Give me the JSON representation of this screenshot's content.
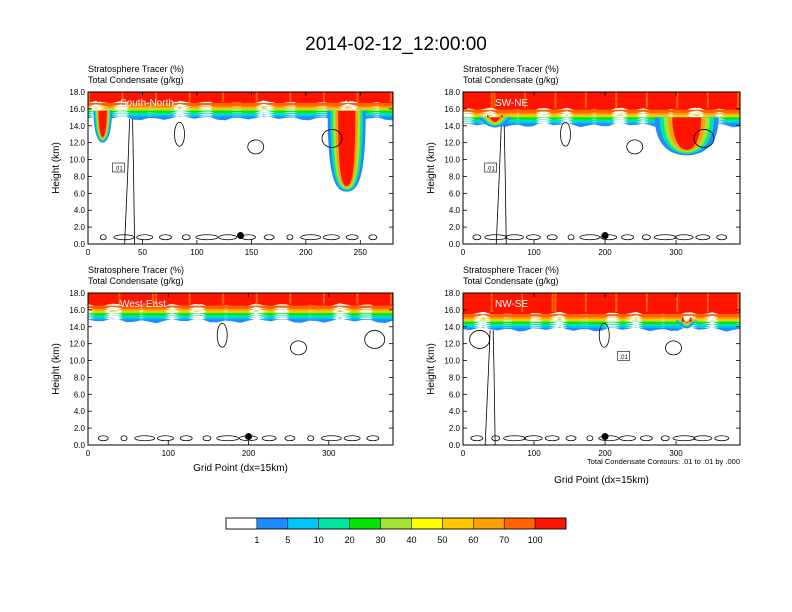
{
  "page": {
    "title": "2014-02-12_12:00:00"
  },
  "colors": {
    "levels": [
      "#ffffff",
      "#1e8cff",
      "#00c8ff",
      "#00e6a0",
      "#00e600",
      "#a0e632",
      "#ffff00",
      "#ffc800",
      "#ffa000",
      "#ff6400",
      "#ff1400"
    ],
    "contour": "#000000"
  },
  "colorbar": {
    "labels": [
      "1",
      "5",
      "10",
      "20",
      "30",
      "40",
      "50",
      "60",
      "70",
      "100"
    ],
    "thresholds": [
      1,
      5,
      10,
      20,
      30,
      40,
      50,
      60,
      70,
      100
    ]
  },
  "chart_data": [
    {
      "type": "heatmap",
      "id": "south-north",
      "subtitle_line1": "Stratosphere Tracer   (%)",
      "subtitle_line2": "Total Condensate   (g/kg)",
      "section_label": "South-North",
      "ylabel": "Height (km)",
      "xlabel": "",
      "xlim": [
        0,
        280
      ],
      "ylim": [
        0,
        18
      ],
      "xticks": [
        0,
        50,
        100,
        150,
        200,
        250
      ],
      "yticks": [
        "0.0",
        "2.0",
        "4.0",
        "6.0",
        "8.0",
        "10.0",
        "12.0",
        "14.0",
        "16.0",
        "18.0"
      ],
      "marker_x": 140,
      "marker_y": 1.0,
      "contour_label": ".01",
      "tracer_base_km": 15.8,
      "intrusions": [
        {
          "x_from": 220,
          "x_to": 255,
          "bottom_km": 6.2
        },
        {
          "x_from": 5,
          "x_to": 22,
          "bottom_km": 12.0
        }
      ]
    },
    {
      "type": "heatmap",
      "id": "sw-ne",
      "subtitle_line1": "Stratosphere Tracer   (%)",
      "subtitle_line2": "Total Condensate   (g/kg)",
      "section_label": "SW-NE",
      "ylabel": "Height (km)",
      "xlabel": "",
      "xlim": [
        0,
        390
      ],
      "ylim": [
        0,
        18
      ],
      "xticks": [
        0,
        100,
        200,
        300
      ],
      "yticks": [
        "0.0",
        "2.0",
        "4.0",
        "6.0",
        "8.0",
        "10.0",
        "12.0",
        "14.0",
        "16.0",
        "18.0"
      ],
      "marker_x": 200,
      "marker_y": 1.0,
      "contour_label": ".01",
      "tracer_base_km": 15.0,
      "intrusions": [
        {
          "x_from": 270,
          "x_to": 360,
          "bottom_km": 10.5
        },
        {
          "x_from": 20,
          "x_to": 70,
          "bottom_km": 13.8
        }
      ]
    },
    {
      "type": "heatmap",
      "id": "west-east",
      "subtitle_line1": "Stratosphere Tracer   (%)",
      "subtitle_line2": "Total Condensate   (g/kg)",
      "section_label": "West-East",
      "ylabel": "Height (km)",
      "xlabel": "Grid Point (dx=15km)",
      "xlim": [
        0,
        380
      ],
      "ylim": [
        0,
        18
      ],
      "xticks": [
        0,
        100,
        200,
        300
      ],
      "yticks": [
        "0.0",
        "2.0",
        "4.0",
        "6.0",
        "8.0",
        "10.0",
        "12.0",
        "14.0",
        "16.0",
        "18.0"
      ],
      "marker_x": 200,
      "marker_y": 1.0,
      "contour_label": "",
      "tracer_base_km": 15.6,
      "intrusions": []
    },
    {
      "type": "heatmap",
      "id": "nw-se",
      "subtitle_line1": "Stratosphere Tracer   (%)",
      "subtitle_line2": "Total Condensate   (g/kg)",
      "section_label": "NW-SE",
      "ylabel": "Height (km)",
      "xlabel": "Grid Point (dx=15km)",
      "xlim": [
        0,
        390
      ],
      "ylim": [
        0,
        18
      ],
      "xticks": [
        0,
        100,
        200,
        300
      ],
      "yticks": [
        "0.0",
        "2.0",
        "4.0",
        "6.0",
        "8.0",
        "10.0",
        "12.0",
        "14.0",
        "16.0",
        "18.0"
      ],
      "marker_x": 200,
      "marker_y": 1.0,
      "contour_label": ".01",
      "contour_note": "Total Condensate Contours: .01 to .01 by .000",
      "tracer_base_km": 14.6,
      "intrusions": [
        {
          "x_from": 300,
          "x_to": 330,
          "bottom_km": 13.8
        }
      ]
    }
  ]
}
